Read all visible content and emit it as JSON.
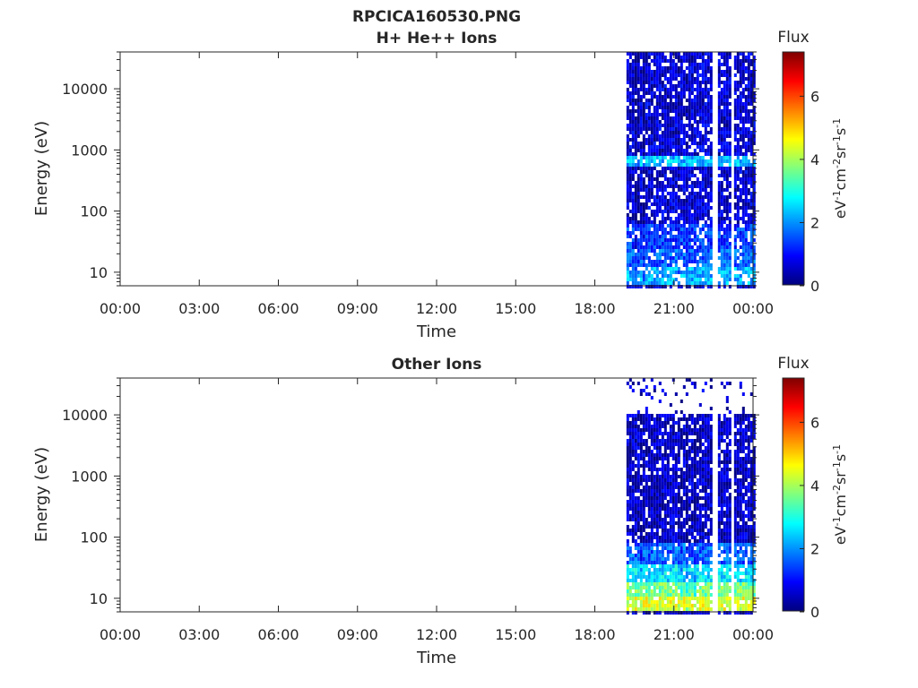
{
  "figure": {
    "title_line1": "RPCICA160530.PNG",
    "title_line2": "H+ He++ Ions"
  },
  "chart_data": [
    {
      "type": "heatmap",
      "title": "H+ He++ Ions",
      "xlabel": "Time",
      "ylabel": "Energy (eV)",
      "x_ticks": [
        "00:00",
        "03:00",
        "06:00",
        "09:00",
        "12:00",
        "15:00",
        "18:00",
        "21:00",
        "00:00"
      ],
      "x_range_hours": [
        0,
        24
      ],
      "y_scale": "log",
      "y_ticks": [
        10,
        100,
        1000,
        10000
      ],
      "y_tick_labels": [
        "10",
        "100",
        "1000",
        "10000"
      ],
      "y_range": [
        6,
        40000
      ],
      "data_start_hour": 19.2,
      "data_end_hour": 24,
      "data_gaps_hours": [
        22.5,
        23.2
      ],
      "colorbar": {
        "title": "Flux",
        "label": "eV-1cm-2sr-1s-1",
        "range": [
          0,
          7.4
        ],
        "ticks": [
          0,
          2,
          4,
          6
        ],
        "colormap": "jet"
      },
      "features": [
        {
          "energy_range": [
            550,
            750
          ],
          "level": 2.3
        },
        {
          "energy_range": [
            6,
            12
          ],
          "level": 2.2
        },
        {
          "energy_range": [
            12,
            25
          ],
          "level": 1.6
        },
        {
          "energy_range": [
            25,
            60
          ],
          "level": 1.3
        }
      ],
      "background_level": 0.6
    },
    {
      "type": "heatmap",
      "title": "Other Ions",
      "xlabel": "Time",
      "ylabel": "Energy (eV)",
      "x_ticks": [
        "00:00",
        "03:00",
        "06:00",
        "09:00",
        "12:00",
        "15:00",
        "18:00",
        "21:00",
        "00:00"
      ],
      "x_range_hours": [
        0,
        24
      ],
      "y_scale": "log",
      "y_ticks": [
        10,
        100,
        1000,
        10000
      ],
      "y_tick_labels": [
        "10",
        "100",
        "1000",
        "10000"
      ],
      "y_range": [
        6,
        40000
      ],
      "data_start_hour": 19.2,
      "data_end_hour": 24,
      "data_gaps_hours": [
        22.5,
        23.2
      ],
      "sparse_above_energy": 11000,
      "colorbar": {
        "title": "Flux",
        "label": "eV-1cm-2sr-1s-1",
        "range": [
          0,
          7.4
        ],
        "ticks": [
          0,
          2,
          4,
          6
        ],
        "colormap": "jet"
      },
      "features": [
        {
          "energy_range": [
            6,
            10
          ],
          "level": 4.4
        },
        {
          "energy_range": [
            10,
            18
          ],
          "level": 3.6
        },
        {
          "energy_range": [
            18,
            35
          ],
          "level": 2.6
        },
        {
          "energy_range": [
            35,
            80
          ],
          "level": 1.6
        }
      ],
      "background_level": 0.5
    }
  ]
}
